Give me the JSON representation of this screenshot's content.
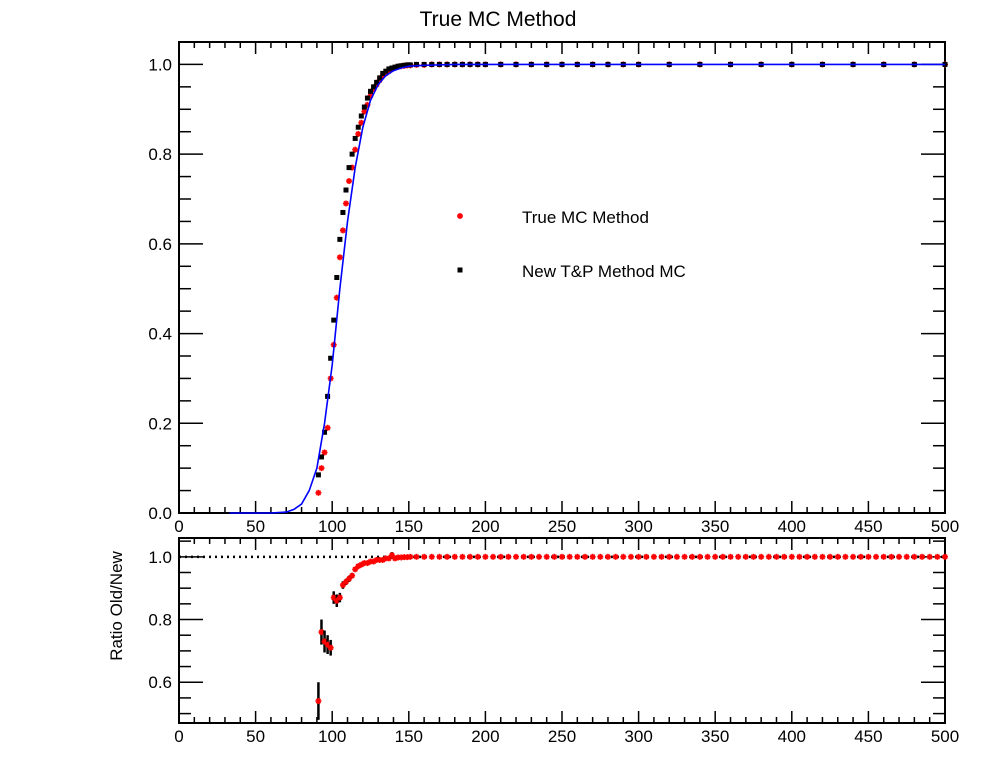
{
  "chart_data": [
    {
      "type": "scatter",
      "title": "True MC Method",
      "xlabel": "",
      "ylabel": "",
      "xlim": [
        0,
        500
      ],
      "ylim": [
        0,
        1.05
      ],
      "x_ticks": [
        0,
        50,
        100,
        150,
        200,
        250,
        300,
        350,
        400,
        450,
        500
      ],
      "y_ticks": [
        0.0,
        0.2,
        0.4,
        0.6,
        0.8,
        1.0
      ],
      "tick_format": {
        "x": 0,
        "y": 1
      },
      "grid": false,
      "legend_position": "center",
      "series": [
        {
          "name": "True MC Method",
          "marker": "star",
          "color": "#ff0000",
          "x": [
            91,
            93,
            95,
            97,
            99,
            101,
            103,
            105,
            107,
            109,
            111,
            113,
            115,
            117,
            119,
            121,
            123,
            125,
            127,
            129,
            131,
            133,
            135,
            137,
            139,
            141,
            143,
            145,
            147,
            149,
            151,
            155,
            160,
            165,
            170,
            175,
            180,
            185,
            190,
            195,
            200,
            210,
            220,
            230,
            240,
            250,
            260,
            270,
            280,
            290,
            300,
            320,
            340,
            360,
            380,
            400,
            420,
            440,
            460,
            480,
            500
          ],
          "y": [
            0.045,
            0.1,
            0.135,
            0.19,
            0.3,
            0.375,
            0.48,
            0.57,
            0.63,
            0.69,
            0.74,
            0.77,
            0.81,
            0.845,
            0.87,
            0.895,
            0.91,
            0.93,
            0.945,
            0.955,
            0.965,
            0.975,
            0.98,
            0.985,
            0.99,
            0.993,
            0.995,
            0.996,
            0.997,
            0.998,
            0.998,
            0.999,
            0.999,
            1.0,
            1.0,
            1.0,
            1.0,
            1.0,
            1.0,
            1.0,
            1.0,
            1.0,
            1.0,
            1.0,
            1.0,
            1.0,
            1.0,
            1.0,
            1.0,
            1.0,
            1.0,
            1.0,
            1.0,
            1.0,
            1.0,
            1.0,
            1.0,
            1.0,
            1.0,
            1.0,
            1.0
          ]
        },
        {
          "name": "New T&P Method MC",
          "marker": "square",
          "color": "#000000",
          "x": [
            91,
            93,
            95,
            97,
            99,
            101,
            103,
            105,
            107,
            109,
            111,
            113,
            115,
            117,
            119,
            121,
            123,
            125,
            127,
            129,
            131,
            133,
            135,
            137,
            139,
            141,
            143,
            145,
            147,
            149,
            151,
            155,
            160,
            165,
            170,
            175,
            180,
            185,
            190,
            195,
            200,
            210,
            220,
            230,
            240,
            250,
            260,
            270,
            280,
            290,
            300,
            320,
            340,
            360,
            380,
            400,
            420,
            440,
            460,
            480,
            500
          ],
          "y": [
            0.085,
            0.125,
            0.18,
            0.26,
            0.345,
            0.43,
            0.525,
            0.61,
            0.67,
            0.72,
            0.77,
            0.8,
            0.835,
            0.86,
            0.885,
            0.905,
            0.925,
            0.94,
            0.95,
            0.96,
            0.97,
            0.98,
            0.985,
            0.99,
            0.992,
            0.994,
            0.996,
            0.997,
            0.998,
            0.999,
            0.999,
            1.0,
            1.0,
            1.0,
            1.0,
            1.0,
            1.0,
            1.0,
            1.0,
            1.0,
            1.0,
            1.0,
            1.0,
            1.0,
            1.0,
            1.0,
            1.0,
            1.0,
            1.0,
            1.0,
            1.0,
            1.0,
            1.0,
            1.0,
            1.0,
            1.0,
            1.0,
            1.0,
            1.0,
            1.0,
            1.0
          ]
        },
        {
          "marker": "line",
          "color": "#0000ff",
          "x": [
            33,
            50,
            60,
            70,
            75,
            80,
            85,
            90,
            95,
            100,
            105,
            110,
            115,
            120,
            125,
            130,
            135,
            140,
            145,
            150,
            160,
            170,
            180,
            200,
            250,
            300,
            400,
            500
          ],
          "y": [
            0.0,
            0.0,
            0.0,
            0.002,
            0.008,
            0.02,
            0.05,
            0.1,
            0.2,
            0.33,
            0.5,
            0.65,
            0.77,
            0.86,
            0.92,
            0.955,
            0.975,
            0.986,
            0.992,
            0.996,
            0.998,
            0.999,
            1.0,
            1.0,
            1.0,
            1.0,
            1.0,
            1.0
          ]
        }
      ]
    },
    {
      "type": "scatter",
      "title": "",
      "xlabel": "",
      "ylabel": "Ratio Old/New",
      "xlim": [
        0,
        500
      ],
      "ylim": [
        0.47,
        1.06
      ],
      "x_ticks": [
        0,
        50,
        100,
        150,
        200,
        250,
        300,
        350,
        400,
        450,
        500
      ],
      "y_ticks": [
        0.6,
        0.8,
        1.0
      ],
      "tick_format": {
        "x": 0,
        "y": 1
      },
      "grid": false,
      "reference_line": 1.0,
      "series": [
        {
          "name": "Ratio Old/New",
          "marker": "star",
          "color": "#ff0000",
          "error_bar_color": "#000000",
          "x": [
            91,
            93,
            95,
            97,
            99,
            101,
            103,
            105,
            107,
            109,
            111,
            113,
            115,
            117,
            119,
            121,
            123,
            125,
            127,
            129,
            131,
            133,
            135,
            137,
            139,
            141,
            143,
            145,
            147,
            149,
            151,
            155,
            160,
            165,
            170,
            175,
            180,
            185,
            190,
            195,
            200,
            205,
            210,
            215,
            220,
            225,
            230,
            235,
            240,
            245,
            250,
            255,
            260,
            265,
            270,
            275,
            280,
            285,
            290,
            295,
            300,
            305,
            310,
            315,
            320,
            325,
            330,
            335,
            340,
            345,
            350,
            355,
            360,
            365,
            370,
            375,
            380,
            385,
            390,
            395,
            400,
            405,
            410,
            415,
            420,
            425,
            430,
            435,
            440,
            445,
            450,
            455,
            460,
            465,
            470,
            475,
            480,
            485,
            490,
            495,
            500
          ],
          "y": [
            0.54,
            0.76,
            0.73,
            0.72,
            0.71,
            0.87,
            0.86,
            0.87,
            0.91,
            0.92,
            0.93,
            0.94,
            0.96,
            0.97,
            0.975,
            0.98,
            0.98,
            0.985,
            0.985,
            0.99,
            0.99,
            0.99,
            0.995,
            0.995,
            1.005,
            0.995,
            0.998,
            0.998,
            0.999,
            0.999,
            1.0,
            1.0,
            1.0,
            1.0,
            1.0,
            1.0,
            1.0,
            1.0,
            1.0,
            1.0,
            1.0,
            1.0,
            1.0,
            1.0,
            1.0,
            1.0,
            1.0,
            1.0,
            1.0,
            1.0,
            1.0,
            1.0,
            1.0,
            1.0,
            1.0,
            1.0,
            1.0,
            1.0,
            1.0,
            1.0,
            1.0,
            1.0,
            1.0,
            1.0,
            1.0,
            1.0,
            1.0,
            1.0,
            1.0,
            1.0,
            1.0,
            1.0,
            1.0,
            1.0,
            1.0,
            1.0,
            1.0,
            1.0,
            1.0,
            1.0,
            1.0,
            1.0,
            1.0,
            1.0,
            1.0,
            1.0,
            1.0,
            1.0,
            1.0,
            1.0,
            1.0,
            1.0,
            1.0,
            1.0,
            1.0,
            1.0,
            1.0,
            1.0,
            1.0,
            1.0,
            1.0
          ],
          "err": [
            0.06,
            0.04,
            0.035,
            0.03,
            0.025,
            0.02,
            0.02,
            0.015,
            0.012,
            0.01,
            0.01,
            0.008,
            0.007,
            0.006,
            0.005,
            0.005,
            0.004,
            0.004,
            0.003,
            0.003,
            0.003,
            0.003,
            0.002,
            0.002,
            0.01,
            0.002,
            0.002,
            0.002,
            0.002,
            0.002,
            0.002,
            0.002,
            0.002,
            0.002,
            0.002,
            0.002,
            0.002,
            0.002,
            0.002,
            0.002,
            0.002,
            0.002,
            0.002,
            0.002,
            0.002,
            0.002,
            0.002,
            0.002,
            0.002,
            0.002,
            0.002,
            0.002,
            0.002,
            0.002,
            0.002,
            0.002,
            0.002,
            0.002,
            0.002,
            0.002,
            0.002,
            0.002,
            0.002,
            0.002,
            0.002,
            0.002,
            0.002,
            0.002,
            0.002,
            0.002,
            0.002,
            0.002,
            0.002,
            0.002,
            0.002,
            0.002,
            0.002,
            0.002,
            0.002,
            0.002,
            0.002,
            0.002,
            0.002,
            0.002,
            0.002,
            0.002,
            0.002,
            0.002,
            0.002,
            0.002,
            0.002,
            0.002,
            0.002,
            0.002,
            0.002,
            0.002,
            0.002,
            0.002,
            0.002,
            0.002,
            0.002
          ]
        }
      ]
    }
  ]
}
